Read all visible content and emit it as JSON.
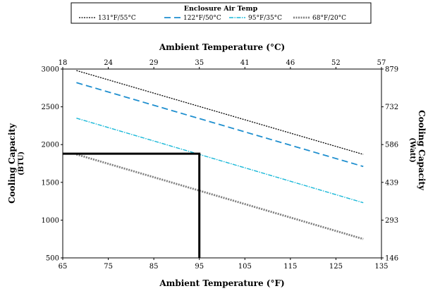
{
  "chart_data": {
    "type": "line",
    "legend": {
      "title": "Enclosure Air Temp",
      "placement": "top-center"
    },
    "series": [
      {
        "name": "131°F/55°C",
        "color": "#000000",
        "style": "dotted",
        "x": [
          68,
          131
        ],
        "y": [
          2980,
          1870
        ]
      },
      {
        "name": "122°F/50°C",
        "color": "#1f8fcf",
        "style": "dashed",
        "x": [
          68,
          131
        ],
        "y": [
          2820,
          1710
        ]
      },
      {
        "name": "95°F/35°C",
        "color": "#19b8d8",
        "style": "dash-dot",
        "x": [
          68,
          131
        ],
        "y": [
          2350,
          1230
        ]
      },
      {
        "name": "68°F/20°C",
        "color": "#7f7f7f",
        "style": "dotted-thick",
        "x": [
          68,
          131
        ],
        "y": [
          1870,
          750
        ]
      }
    ],
    "reference_lines": {
      "x": 95,
      "y": 1880
    },
    "x_axis_bottom": {
      "label": "Ambient Temperature (°F)",
      "range": [
        65,
        135
      ],
      "ticks": [
        "65",
        "75",
        "85",
        "95",
        "105",
        "115",
        "125",
        "135"
      ]
    },
    "x_axis_top": {
      "label": "Ambient Temperature (°C)",
      "ticks": [
        "18",
        "24",
        "29",
        "35",
        "41",
        "46",
        "52",
        "57"
      ]
    },
    "y_axis_left": {
      "label": "Cooling Capacity",
      "unit": "(BTU)",
      "range": [
        500,
        3000
      ],
      "ticks": [
        "3000",
        "2500",
        "2000",
        "1500",
        "1000",
        "500"
      ]
    },
    "y_axis_right": {
      "label": "Cooling Capacity",
      "unit": "(Watt)",
      "ticks": [
        "879",
        "732",
        "586",
        "439",
        "293",
        "146"
      ]
    },
    "grid": false
  }
}
